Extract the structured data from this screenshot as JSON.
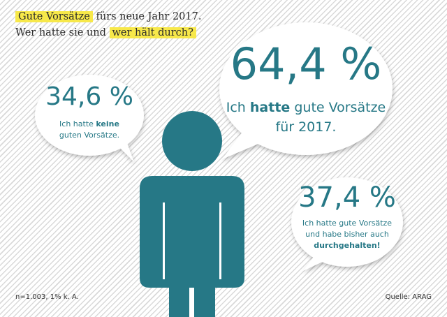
{
  "title": {
    "line1_highlight": "Gute Vorsätze",
    "line1_rest": "fürs neue Jahr 2017.",
    "line2_rest": "Wer hatte sie und",
    "line2_highlight": "wer hält durch?"
  },
  "bubbles": {
    "no_resolutions": {
      "value": "34,6 %",
      "text_pre": "Ich hatte ",
      "text_bold": "keine",
      "text_post": "guten Vorsätze."
    },
    "had_resolutions": {
      "value": "64,4 %",
      "text_pre": "Ich ",
      "text_bold": "hatte",
      "text_post": " gute Vorsätze",
      "text_line2": "für 2017."
    },
    "kept_resolutions": {
      "value": "37,4 %",
      "text_line1": "Ich hatte gute Vorsätze",
      "text_line2": "und habe bisher auch",
      "text_bold": "durchgehalten!"
    }
  },
  "footer": {
    "sample": "n=1.003, 1% k. A.",
    "source": "Quelle: ARAG"
  },
  "colors": {
    "accent": "#267886",
    "highlight": "#f7e84a"
  },
  "icons": {
    "figure": "person-icon"
  }
}
